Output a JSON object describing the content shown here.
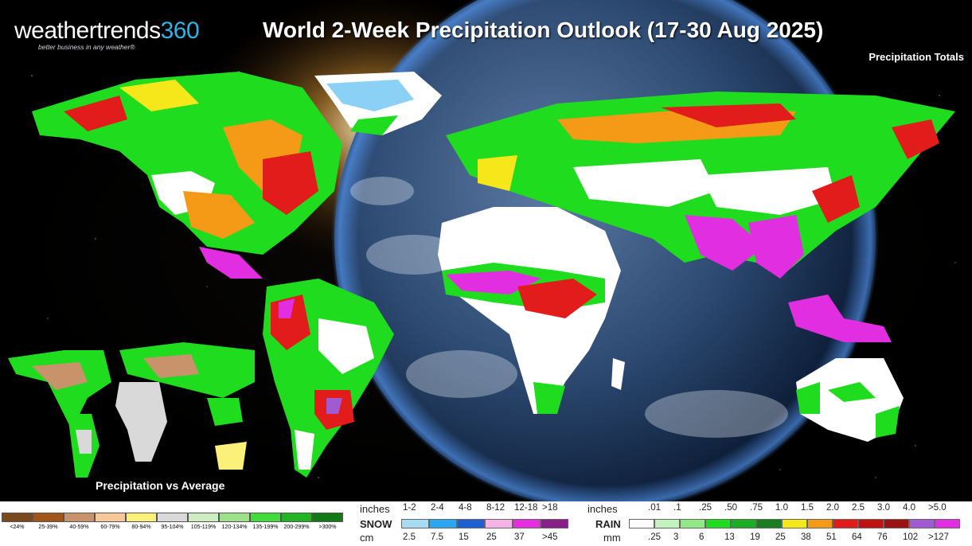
{
  "logo": {
    "part1": "weathertrends",
    "part2": "360",
    "tagline": "better business in any weather®"
  },
  "title": "World 2-Week Precipitation Outlook (17-30 Aug 2025)",
  "subtitle": "Precipitation Totals",
  "inset_label": "Precipitation vs Average",
  "pct_legend": [
    {
      "label": "<24%",
      "color": "#7a4a1e"
    },
    {
      "label": "25-39%",
      "color": "#a0551a"
    },
    {
      "label": "40-59%",
      "color": "#c8926a"
    },
    {
      "label": "60-79%",
      "color": "#f6c89a"
    },
    {
      "label": "80-94%",
      "color": "#fbf07a"
    },
    {
      "label": "95-104%",
      "color": "#d9d9d9"
    },
    {
      "label": "105-119%",
      "color": "#cdeec3"
    },
    {
      "label": "120-134%",
      "color": "#9fe08a"
    },
    {
      "label": "135-199%",
      "color": "#3fdc3a"
    },
    {
      "label": "200-299%",
      "color": "#23b423"
    },
    {
      "label": ">300%",
      "color": "#117a17"
    }
  ],
  "snow_legend": {
    "unit_top": "inches",
    "name": "SNOW",
    "unit_bottom": "cm",
    "inches": [
      "1-2",
      "2-4",
      "4-8",
      "8-12",
      "12-18",
      ">18"
    ],
    "cm": [
      "2.5",
      "7.5",
      "15",
      "25",
      "37",
      ">45"
    ],
    "colors": [
      "#a8dcf5",
      "#2aa7ef",
      "#1f5fd6",
      "#f6b3e6",
      "#e62ee0",
      "#8a1f8a"
    ]
  },
  "rain_legend": {
    "unit_top": "inches",
    "name": "RAIN",
    "unit_bottom": "mm",
    "inches": [
      ".01",
      ".1",
      ".25",
      ".50",
      ".75",
      "1.0",
      "1.5",
      "2.0",
      "2.5",
      "3.0",
      "4.0",
      ">5.0"
    ],
    "mm": [
      ".25",
      "3",
      "6",
      "13",
      "19",
      "25",
      "38",
      "51",
      "64",
      "76",
      "102",
      ">127"
    ],
    "colors": [
      "#ffffff",
      "#c4f3c0",
      "#8fea86",
      "#1fdc1f",
      "#1aae22",
      "#177f1e",
      "#f5e71a",
      "#f59a16",
      "#e21b1b",
      "#c11212",
      "#9a1212",
      "#a25ad1",
      "#e12ee0"
    ]
  }
}
